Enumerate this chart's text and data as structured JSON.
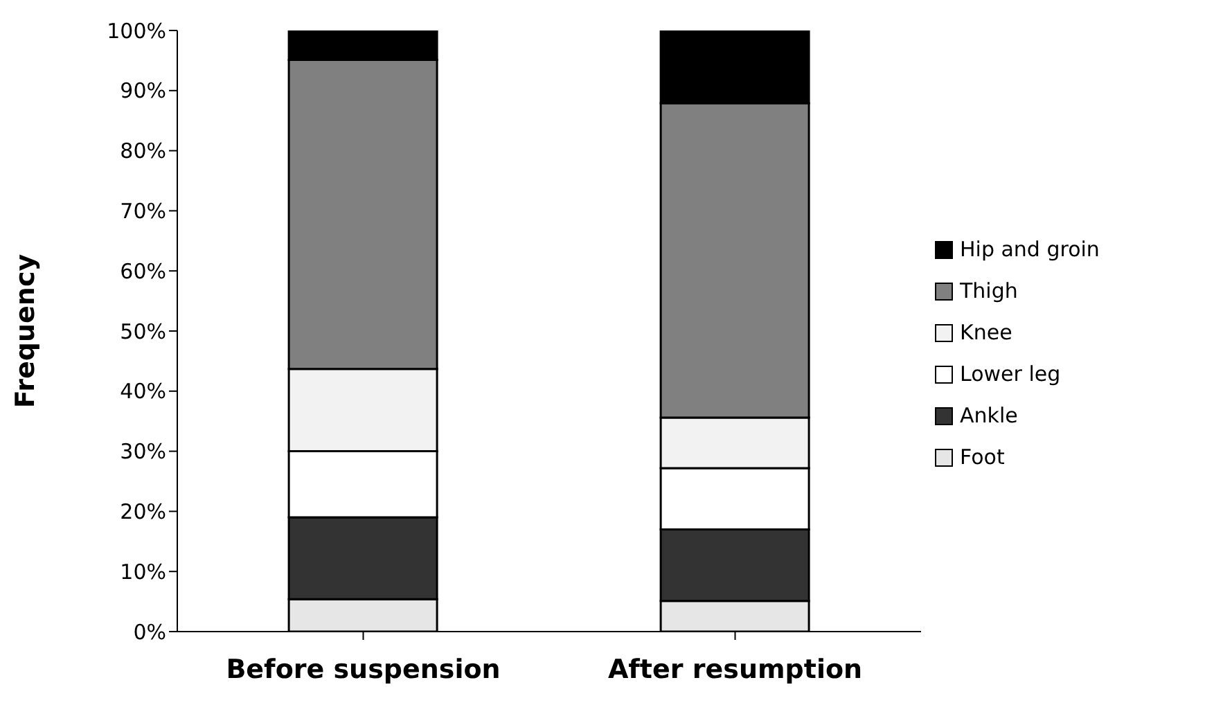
{
  "chart_data": {
    "type": "bar",
    "stacked": true,
    "ylabel": "Frequency",
    "categories": [
      "Before suspension",
      "After resumption"
    ],
    "series": [
      {
        "name": "Foot",
        "color": "#e6e6e6",
        "values": [
          5.4,
          5.1
        ]
      },
      {
        "name": "Ankle",
        "color": "#333333",
        "values": [
          13.6,
          11.9
        ]
      },
      {
        "name": "Lower leg",
        "color": "#ffffff",
        "values": [
          11,
          10.2
        ]
      },
      {
        "name": "Knee",
        "color": "#f2f2f2",
        "values": [
          13.7,
          8.4
        ]
      },
      {
        "name": "Thigh",
        "color": "#808080",
        "values": [
          51.4,
          52.3
        ]
      },
      {
        "name": "Hip and groin",
        "color": "#000000",
        "values": [
          4.9,
          12.1
        ]
      }
    ],
    "ylim": [
      0,
      100
    ],
    "yticks": [
      {
        "value": 0,
        "label": "0%"
      },
      {
        "value": 10,
        "label": "10%"
      },
      {
        "value": 20,
        "label": "20%"
      },
      {
        "value": 30,
        "label": "30%"
      },
      {
        "value": 40,
        "label": "40%"
      },
      {
        "value": 50,
        "label": "50%"
      },
      {
        "value": 60,
        "label": "60%"
      },
      {
        "value": 70,
        "label": "70%"
      },
      {
        "value": 80,
        "label": "80%"
      },
      {
        "value": 90,
        "label": "90%"
      },
      {
        "value": 100,
        "label": "100%"
      }
    ],
    "grid": false,
    "legend": "right"
  }
}
